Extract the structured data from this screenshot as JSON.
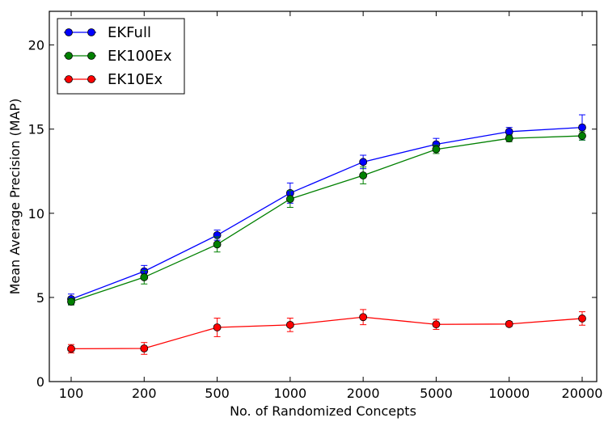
{
  "chart_data": {
    "type": "line",
    "xlabel": "No. of Randomized Concepts",
    "ylabel": "Mean Average Precision (MAP)",
    "categories": [
      "100",
      "200",
      "500",
      "1000",
      "2000",
      "5000",
      "10000",
      "20000"
    ],
    "yticks": [
      "0",
      "5",
      "10",
      "15",
      "20"
    ],
    "ylim": [
      0,
      22
    ],
    "grid": false,
    "legend_position": "top-left",
    "series": [
      {
        "name": "EKFull",
        "color": "#0000ff",
        "values": [
          4.9,
          6.55,
          8.7,
          11.2,
          13.05,
          14.1,
          14.85,
          15.1
        ],
        "errors": [
          0.3,
          0.35,
          0.3,
          0.6,
          0.4,
          0.35,
          0.25,
          0.75
        ]
      },
      {
        "name": "EK100Ex",
        "color": "#008000",
        "values": [
          4.75,
          6.2,
          8.15,
          10.85,
          12.25,
          13.8,
          14.45,
          14.6
        ],
        "errors": [
          0.2,
          0.4,
          0.45,
          0.5,
          0.5,
          0.25,
          0.2,
          0.25
        ]
      },
      {
        "name": "EK10Ex",
        "color": "#ff0000",
        "values": [
          1.95,
          1.97,
          3.22,
          3.37,
          3.83,
          3.4,
          3.42,
          3.75
        ],
        "errors": [
          0.25,
          0.35,
          0.55,
          0.4,
          0.45,
          0.3,
          0.15,
          0.4
        ]
      }
    ]
  }
}
